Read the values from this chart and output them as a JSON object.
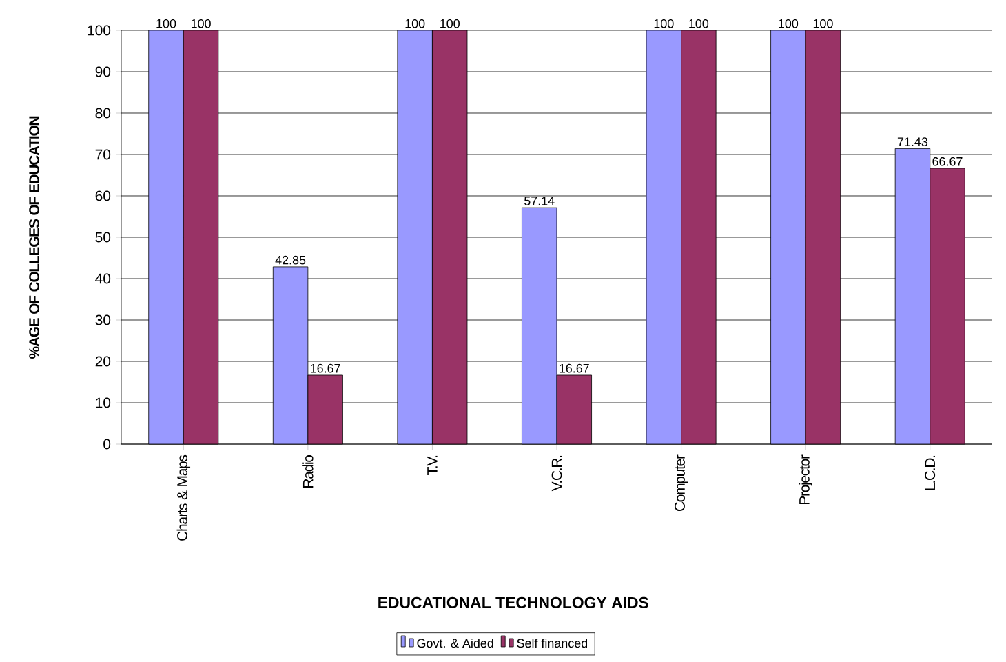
{
  "chart_data": {
    "type": "bar",
    "xlabel": "EDUCATIONAL TECHNOLOGY AIDS",
    "ylabel": "%AGE OF COLLEGES OF EDUCATION",
    "categories": [
      "Charts & Maps",
      "Radio",
      "T.V.",
      "V.C.R.",
      "Computer",
      "Projector",
      "L.C.D."
    ],
    "series": [
      {
        "name": "Govt. & Aided",
        "color": "#9999ff",
        "values": [
          100,
          42.85,
          100,
          57.14,
          100,
          100,
          71.43
        ],
        "value_labels": [
          "100",
          "42.85",
          "100",
          "57.14",
          "100",
          "100",
          "71.43"
        ]
      },
      {
        "name": "Self financed",
        "color": "#993366",
        "values": [
          100,
          16.67,
          100,
          16.67,
          100,
          100,
          66.67
        ],
        "value_labels": [
          "100",
          "16.67",
          "100",
          "16.67",
          "100",
          "100",
          "66.67"
        ]
      }
    ],
    "ylim": [
      0,
      100
    ],
    "yticks": [
      0,
      10,
      20,
      30,
      40,
      50,
      60,
      70,
      80,
      90,
      100
    ],
    "grid": "y",
    "legend": "bottom"
  }
}
